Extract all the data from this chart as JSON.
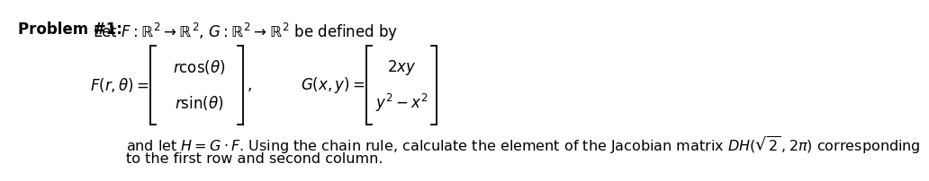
{
  "background_color": "#ffffff",
  "bold_label": "Problem #1:",
  "line1_text": " Let $F:\\mathbb{R}^2 \\rightarrow \\mathbb{R}^2$, $G:\\mathbb{R}^2 \\rightarrow \\mathbb{R}^2$ be defined by",
  "F_label": "$F(r, \\theta) = $",
  "F_top": "$r\\cos(\\theta)$",
  "F_bot": "$r\\sin(\\theta)$",
  "G_label": "$G(x, y) = $",
  "G_top": "$2xy$",
  "G_bot": "$y^2 - x^2$",
  "body1": "and let $H = G \\cdot F$. Using the chain rule, calculate the element of the Jacobian matrix $DH(\\sqrt{2}\\, ,2\\pi)$ corresponding",
  "body2": "to the first row and second column.",
  "fs": 12,
  "fs_bold": 12
}
